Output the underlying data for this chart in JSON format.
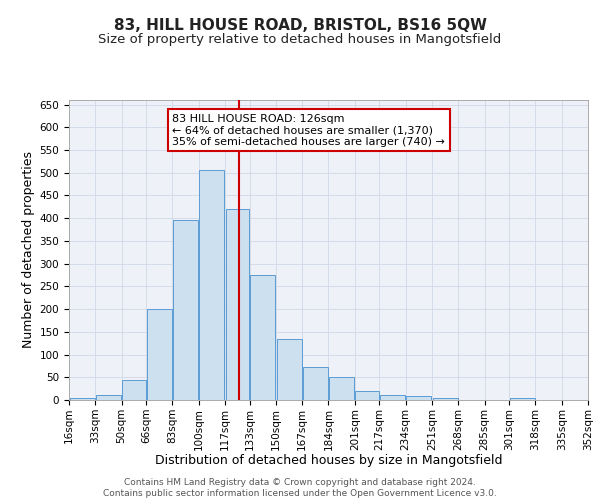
{
  "title1": "83, HILL HOUSE ROAD, BRISTOL, BS16 5QW",
  "title2": "Size of property relative to detached houses in Mangotsfield",
  "xlabel": "Distribution of detached houses by size in Mangotsfield",
  "ylabel": "Number of detached properties",
  "bin_edges": [
    16,
    33,
    50,
    66,
    83,
    100,
    117,
    133,
    150,
    167,
    184,
    201,
    217,
    234,
    251,
    268,
    285,
    301,
    318,
    335,
    352
  ],
  "bar_heights": [
    5,
    10,
    45,
    200,
    395,
    505,
    420,
    275,
    135,
    72,
    50,
    20,
    10,
    8,
    5,
    0,
    0,
    5,
    0,
    0
  ],
  "bar_color": "#cce0f0",
  "bar_edge_color": "#5b9bd5",
  "vline_x": 126,
  "vline_color": "#cc0000",
  "annotation_line1": "83 HILL HOUSE ROAD: 126sqm",
  "annotation_line2": "← 64% of detached houses are smaller (1,370)",
  "annotation_line3": "35% of semi-detached houses are larger (740) →",
  "annotation_box_color": "#ffffff",
  "annotation_box_edge": "#cc0000",
  "ylim": [
    0,
    660
  ],
  "yticks": [
    0,
    50,
    100,
    150,
    200,
    250,
    300,
    350,
    400,
    450,
    500,
    550,
    600,
    650
  ],
  "grid_color": "#d0d8e8",
  "background_color": "#eef2f8",
  "footer_text": "Contains HM Land Registry data © Crown copyright and database right 2024.\nContains public sector information licensed under the Open Government Licence v3.0.",
  "title1_fontsize": 11,
  "title2_fontsize": 9.5,
  "xlabel_fontsize": 9,
  "ylabel_fontsize": 9,
  "tick_fontsize": 7.5,
  "annotation_fontsize": 8,
  "footer_fontsize": 6.5
}
